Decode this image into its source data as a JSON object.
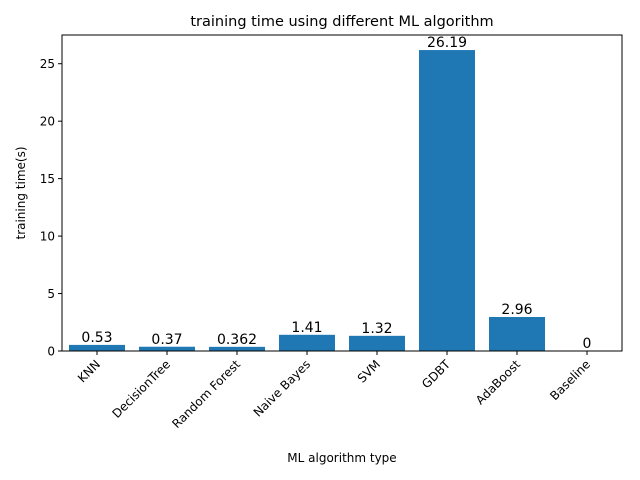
{
  "chart_data": {
    "type": "bar",
    "title": "training time using different ML algorithm",
    "xlabel": "ML algorithm type",
    "ylabel": "training time(s)",
    "categories": [
      "KNN",
      "DecisionTree",
      "Random Forest",
      "Naive Bayes",
      "SVM",
      "GDBT",
      "AdaBoost",
      "Baseline"
    ],
    "values": [
      0.53,
      0.37,
      0.362,
      1.41,
      1.32,
      26.19,
      2.96,
      0
    ],
    "data_labels": [
      "0.53",
      "0.37",
      "0.362",
      "1.41",
      "1.32",
      "26.19",
      "2.96",
      "0"
    ],
    "ylim": [
      0,
      27.5
    ],
    "yticks": [
      0,
      5,
      10,
      15,
      20,
      25
    ],
    "bar_color": "#1f77b4",
    "grid": false,
    "legend": "none"
  }
}
